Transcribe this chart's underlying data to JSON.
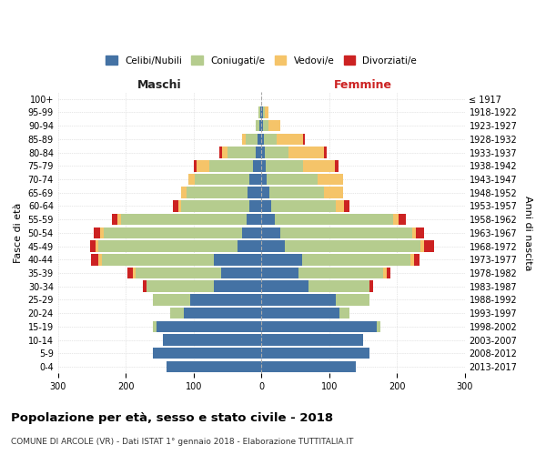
{
  "age_groups": [
    "0-4",
    "5-9",
    "10-14",
    "15-19",
    "20-24",
    "25-29",
    "30-34",
    "35-39",
    "40-44",
    "45-49",
    "50-54",
    "55-59",
    "60-64",
    "65-69",
    "70-74",
    "75-79",
    "80-84",
    "85-89",
    "90-94",
    "95-99",
    "100+"
  ],
  "birth_years": [
    "2013-2017",
    "2008-2012",
    "2003-2007",
    "1998-2002",
    "1993-1997",
    "1988-1992",
    "1983-1987",
    "1978-1982",
    "1973-1977",
    "1968-1972",
    "1963-1967",
    "1958-1962",
    "1953-1957",
    "1948-1952",
    "1943-1947",
    "1938-1942",
    "1933-1937",
    "1928-1932",
    "1923-1927",
    "1918-1922",
    "≤ 1917"
  ],
  "male_celibe": [
    140,
    160,
    145,
    155,
    115,
    105,
    70,
    60,
    70,
    35,
    28,
    22,
    18,
    20,
    18,
    12,
    8,
    5,
    3,
    2,
    0
  ],
  "male_coniugato": [
    0,
    0,
    0,
    5,
    20,
    55,
    100,
    125,
    165,
    205,
    205,
    185,
    100,
    90,
    80,
    65,
    42,
    18,
    5,
    2,
    0
  ],
  "male_vedovo": [
    0,
    0,
    0,
    0,
    0,
    0,
    0,
    5,
    5,
    5,
    5,
    5,
    5,
    8,
    10,
    18,
    8,
    5,
    0,
    0,
    0
  ],
  "male_divorziato": [
    0,
    0,
    0,
    0,
    0,
    0,
    5,
    8,
    12,
    8,
    10,
    8,
    8,
    0,
    0,
    4,
    4,
    0,
    0,
    0,
    0
  ],
  "female_celibe": [
    140,
    160,
    150,
    170,
    115,
    110,
    70,
    55,
    60,
    35,
    28,
    20,
    15,
    12,
    8,
    6,
    5,
    4,
    2,
    2,
    0
  ],
  "female_coniugata": [
    0,
    0,
    0,
    5,
    15,
    50,
    90,
    125,
    160,
    200,
    195,
    175,
    95,
    80,
    75,
    55,
    35,
    18,
    8,
    3,
    0
  ],
  "female_vedova": [
    0,
    0,
    0,
    0,
    0,
    0,
    0,
    5,
    5,
    5,
    5,
    8,
    12,
    28,
    38,
    48,
    52,
    40,
    18,
    5,
    0
  ],
  "female_divorziata": [
    0,
    0,
    0,
    0,
    0,
    0,
    5,
    5,
    8,
    15,
    12,
    10,
    8,
    0,
    0,
    5,
    4,
    2,
    0,
    0,
    0
  ],
  "color_celibe": "#4472a4",
  "color_coniugato": "#b5cc8e",
  "color_vedovo": "#f5c469",
  "color_divorziato": "#cc2222",
  "title": "Popolazione per età, sesso e stato civile - 2018",
  "subtitle": "COMUNE DI ARCOLE (VR) - Dati ISTAT 1° gennaio 2018 - Elaborazione TUTTITALIA.IT",
  "xlabel_left": "Maschi",
  "xlabel_right": "Femmine",
  "ylabel_left": "Fasce di età",
  "ylabel_right": "Anni di nascita",
  "xlim": 300,
  "legend_labels": [
    "Celibi/Nubili",
    "Coniugati/e",
    "Vedovi/e",
    "Divorziati/e"
  ],
  "background_color": "#ffffff",
  "grid_color": "#cccccc"
}
